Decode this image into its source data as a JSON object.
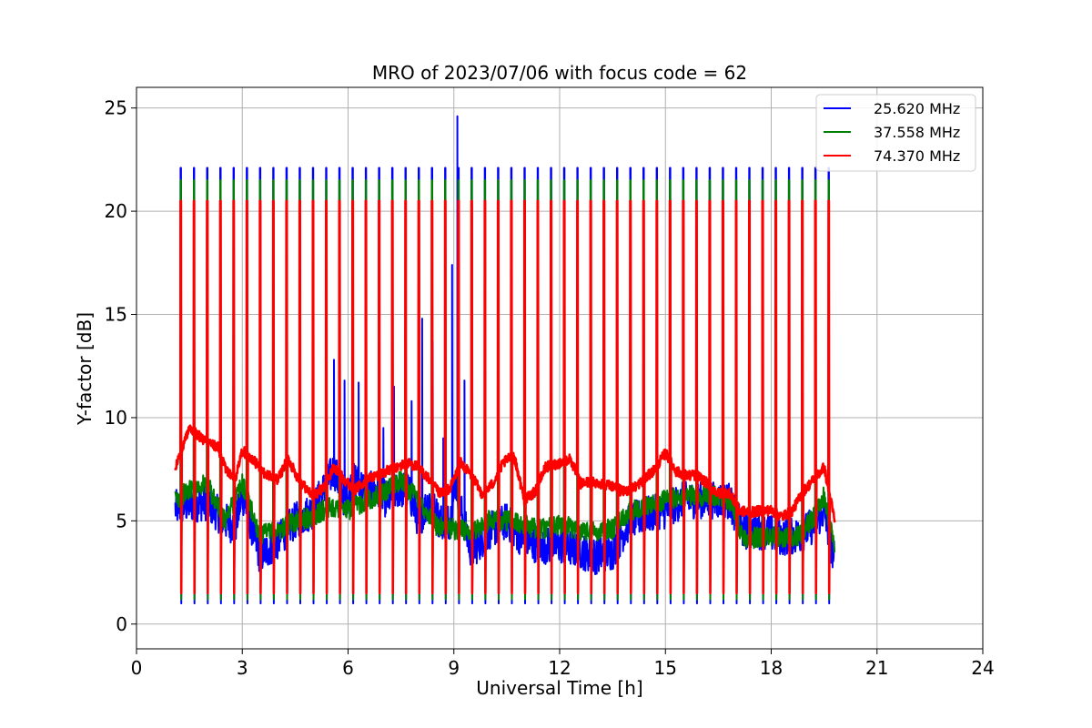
{
  "chart_data": {
    "type": "line",
    "title": "MRO of 2023/07/06 with focus code = 62",
    "xlabel": "Universal Time [h]",
    "ylabel": "Y-factor [dB]",
    "xlim": [
      0,
      24
    ],
    "ylim": [
      -1.2,
      26.0
    ],
    "xticks": [
      0,
      3,
      6,
      9,
      12,
      15,
      18,
      21,
      24
    ],
    "yticks": [
      0,
      5,
      10,
      15,
      20,
      25
    ],
    "grid": true,
    "legend_position": "top-right",
    "pulse_times": [
      1.25,
      1.625,
      2.0,
      2.375,
      2.75,
      3.125,
      3.5,
      3.875,
      4.25,
      4.625,
      5.0,
      5.375,
      5.75,
      6.125,
      6.5,
      6.875,
      7.25,
      7.625,
      8.0,
      8.375,
      8.75,
      9.125,
      9.5,
      9.875,
      10.25,
      10.625,
      11.0,
      11.375,
      11.75,
      12.125,
      12.5,
      12.875,
      13.25,
      13.625,
      14.0,
      14.375,
      14.75,
      15.125,
      15.5,
      15.875,
      16.25,
      16.625,
      17.0,
      17.375,
      17.75,
      18.125,
      18.5,
      18.875,
      19.25,
      19.625
    ],
    "series": [
      {
        "name": "25.620 MHz",
        "color": "#0000ff",
        "peak": 22.1,
        "dip": 1.0,
        "baseline": {
          "x": [
            1.1,
            1.5,
            2.0,
            2.5,
            2.8,
            3.0,
            3.5,
            4.0,
            4.5,
            5.0,
            5.3,
            5.6,
            5.9,
            6.2,
            6.5,
            6.8,
            7.1,
            7.4,
            7.7,
            8.0,
            8.3,
            8.6,
            8.9,
            9.05,
            9.2,
            9.5,
            10.0,
            10.5,
            11.0,
            11.5,
            12.0,
            12.5,
            13.0,
            13.5,
            14.0,
            14.5,
            15.0,
            15.5,
            16.0,
            16.5,
            16.8,
            17.2,
            17.8,
            18.3,
            18.8,
            19.2,
            19.5,
            19.8
          ],
          "y": [
            5.6,
            5.8,
            5.9,
            5.0,
            4.7,
            6.3,
            3.3,
            4.0,
            5.0,
            5.5,
            6.5,
            7.5,
            6.0,
            7.0,
            6.5,
            6.5,
            6.0,
            6.5,
            6.5,
            5.0,
            6.0,
            5.0,
            5.0,
            7.0,
            5.5,
            3.5,
            4.5,
            5.0,
            4.0,
            3.8,
            3.8,
            3.6,
            3.3,
            3.5,
            5.0,
            5.3,
            5.5,
            6.0,
            6.0,
            6.0,
            6.0,
            4.5,
            4.5,
            4.2,
            4.3,
            4.8,
            5.5,
            3.0
          ]
        },
        "spikes": [
          {
            "x": 5.6,
            "y": 12.8
          },
          {
            "x": 5.9,
            "y": 11.8
          },
          {
            "x": 6.3,
            "y": 11.7
          },
          {
            "x": 7.0,
            "y": 9.5
          },
          {
            "x": 7.3,
            "y": 11.5
          },
          {
            "x": 7.8,
            "y": 10.8
          },
          {
            "x": 8.1,
            "y": 14.8
          },
          {
            "x": 8.4,
            "y": 13.7
          },
          {
            "x": 8.7,
            "y": 9.0
          },
          {
            "x": 8.95,
            "y": 17.4
          },
          {
            "x": 9.1,
            "y": 24.6
          },
          {
            "x": 9.3,
            "y": 11.8
          }
        ]
      },
      {
        "name": "37.558 MHz",
        "color": "#008000",
        "peak": 21.5,
        "dip": 1.2,
        "baseline": {
          "x": [
            1.1,
            1.5,
            2.0,
            2.5,
            3.0,
            3.5,
            4.0,
            4.5,
            5.0,
            5.5,
            6.0,
            6.5,
            7.0,
            7.5,
            8.0,
            8.5,
            9.0,
            9.5,
            10.0,
            10.5,
            11.0,
            11.5,
            12.0,
            12.5,
            13.0,
            13.5,
            14.0,
            14.5,
            15.0,
            15.5,
            16.0,
            16.5,
            16.8,
            17.2,
            17.8,
            18.3,
            18.8,
            19.2,
            19.5,
            19.8
          ],
          "y": [
            6.0,
            6.5,
            6.8,
            5.0,
            6.8,
            4.3,
            4.5,
            5.0,
            5.2,
            5.7,
            5.5,
            6.0,
            6.3,
            7.0,
            6.0,
            4.8,
            4.6,
            4.5,
            5.0,
            5.0,
            4.8,
            4.6,
            4.8,
            4.6,
            4.5,
            4.6,
            5.5,
            5.8,
            6.0,
            6.2,
            6.2,
            6.2,
            6.0,
            4.2,
            4.2,
            4.2,
            4.3,
            5.2,
            6.2,
            3.8
          ]
        },
        "spikes": []
      },
      {
        "name": "74.370 MHz",
        "color": "#ff0000",
        "peak": 20.5,
        "dip": 1.5,
        "baseline": {
          "x": [
            1.1,
            1.3,
            1.5,
            1.7,
            2.0,
            2.3,
            2.5,
            2.8,
            3.0,
            3.3,
            3.6,
            4.0,
            4.3,
            4.6,
            5.0,
            5.3,
            5.6,
            5.9,
            6.2,
            6.5,
            6.8,
            7.1,
            7.4,
            7.7,
            8.0,
            8.3,
            8.6,
            8.9,
            9.2,
            9.5,
            9.8,
            10.1,
            10.4,
            10.7,
            11.0,
            11.3,
            11.6,
            12.0,
            12.3,
            12.6,
            12.9,
            13.2,
            13.5,
            13.8,
            14.1,
            14.4,
            14.7,
            15.0,
            15.3,
            15.6,
            15.9,
            16.2,
            16.5,
            16.8,
            17.1,
            17.4,
            17.7,
            18.0,
            18.3,
            18.6,
            18.9,
            19.2,
            19.5,
            19.8
          ],
          "y": [
            7.6,
            8.5,
            9.6,
            9.2,
            8.8,
            8.6,
            7.6,
            7.0,
            8.4,
            8.0,
            7.3,
            7.0,
            8.0,
            7.0,
            6.2,
            6.6,
            7.6,
            7.0,
            6.5,
            7.0,
            7.2,
            7.4,
            7.6,
            7.8,
            7.6,
            7.0,
            6.3,
            6.6,
            7.8,
            7.2,
            6.3,
            6.8,
            7.8,
            8.2,
            6.0,
            6.4,
            7.6,
            7.8,
            8.0,
            6.8,
            6.9,
            6.8,
            6.7,
            6.4,
            6.6,
            7.0,
            7.5,
            8.3,
            7.4,
            7.2,
            7.2,
            6.8,
            6.3,
            6.4,
            5.5,
            5.4,
            5.5,
            5.5,
            5.2,
            5.5,
            6.4,
            7.0,
            7.6,
            5.0
          ]
        },
        "spikes": []
      }
    ]
  }
}
